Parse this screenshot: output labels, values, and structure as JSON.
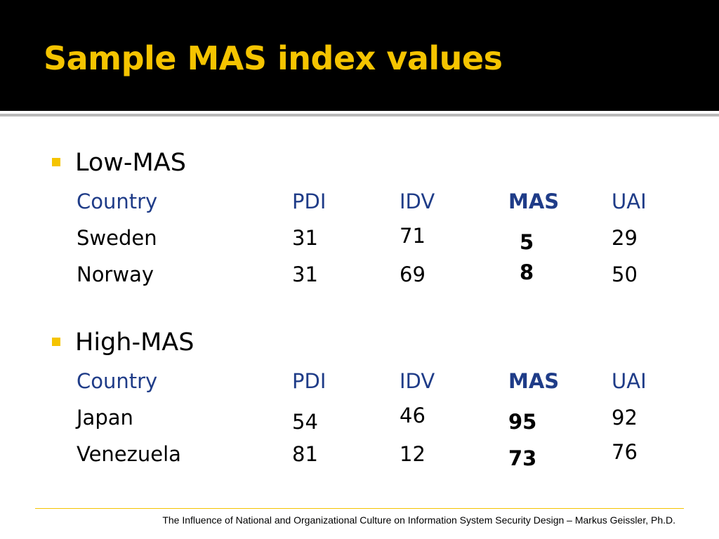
{
  "slide": {
    "title": "Sample MAS index values",
    "accent_color": "#f5c400",
    "header_color": "#1f3c88",
    "sections": [
      {
        "heading": "Low-MAS",
        "columns": [
          "Country",
          "PDI",
          "IDV",
          "MAS",
          "UAI"
        ],
        "rows": [
          [
            "Sweden",
            "31",
            "71",
            "5",
            "29"
          ],
          [
            "Norway",
            "31",
            "69",
            "8",
            "50"
          ]
        ]
      },
      {
        "heading": "High-MAS",
        "columns": [
          "Country",
          "PDI",
          "IDV",
          "MAS",
          "UAI"
        ],
        "rows": [
          [
            "Japan",
            "54",
            "46",
            "95",
            "92"
          ],
          [
            "Venezuela",
            "81",
            "12",
            "73",
            "76"
          ]
        ]
      }
    ],
    "footer": "The Influence of National and Organizational Culture on Information System Security Design – Markus Geissler, Ph.D."
  }
}
